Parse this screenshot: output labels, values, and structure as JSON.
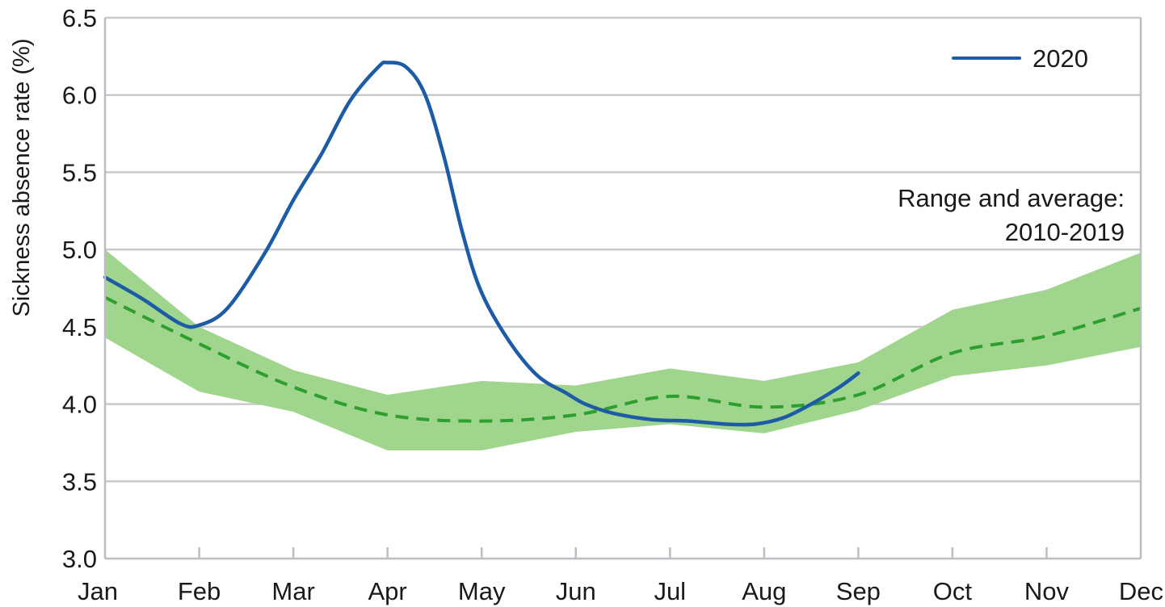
{
  "chart_data": {
    "type": "line",
    "ylabel": "Sickness absence rate (%)",
    "xlabel": "",
    "ylim": [
      3.0,
      6.5
    ],
    "yticks": [
      "3.0",
      "3.5",
      "4.0",
      "4.5",
      "5.0",
      "5.5",
      "6.0",
      "6.5"
    ],
    "categories": [
      "Jan",
      "Feb",
      "Mar",
      "Apr",
      "May",
      "Jun",
      "Jul",
      "Aug",
      "Sep",
      "Oct",
      "Nov",
      "Dec"
    ],
    "grid": true,
    "legend_position": "top-right",
    "series": [
      {
        "name": "2020",
        "color": "#1d5ba6",
        "style": "solid",
        "x": [
          0,
          0.4,
          0.8,
          1.0,
          1.3,
          1.7,
          2.0,
          2.3,
          2.6,
          2.9,
          3.0,
          3.2,
          3.4,
          3.6,
          3.8,
          4.0,
          4.3,
          4.6,
          4.9,
          5.1,
          5.4,
          5.8,
          6.2,
          6.6,
          6.9,
          7.2,
          7.5,
          7.8,
          8.0
        ],
        "values": [
          4.82,
          4.68,
          4.52,
          4.51,
          4.62,
          4.98,
          5.32,
          5.62,
          5.96,
          6.18,
          6.21,
          6.18,
          6.0,
          5.6,
          5.1,
          4.72,
          4.4,
          4.18,
          4.07,
          4.0,
          3.94,
          3.9,
          3.89,
          3.87,
          3.87,
          3.91,
          4.0,
          4.11,
          4.2
        ]
      },
      {
        "name": "Range and average: 2010-2019",
        "color": "#2e9e2e",
        "style": "dashed",
        "x": [
          0,
          1,
          2,
          3,
          4,
          5,
          6,
          7,
          8,
          9,
          10,
          11
        ],
        "values": [
          4.69,
          4.39,
          4.11,
          3.93,
          3.89,
          3.93,
          4.05,
          3.98,
          4.06,
          4.33,
          4.44,
          4.62
        ]
      }
    ],
    "band": {
      "name": "Range and average: 2010-2019",
      "color": "#9fd58d",
      "x": [
        0,
        1,
        2,
        3,
        4,
        5,
        6,
        7,
        8,
        9,
        10,
        11
      ],
      "upper": [
        5.0,
        4.5,
        4.22,
        4.06,
        4.15,
        4.12,
        4.23,
        4.15,
        4.27,
        4.61,
        4.74,
        4.98
      ],
      "lower": [
        4.43,
        4.08,
        3.95,
        3.7,
        3.7,
        3.82,
        3.87,
        3.81,
        3.96,
        4.18,
        4.25,
        4.37
      ]
    },
    "annotations": {
      "legend_label": "2020",
      "band_label_line1": "Range and average:",
      "band_label_line2": "2010-2019"
    }
  }
}
